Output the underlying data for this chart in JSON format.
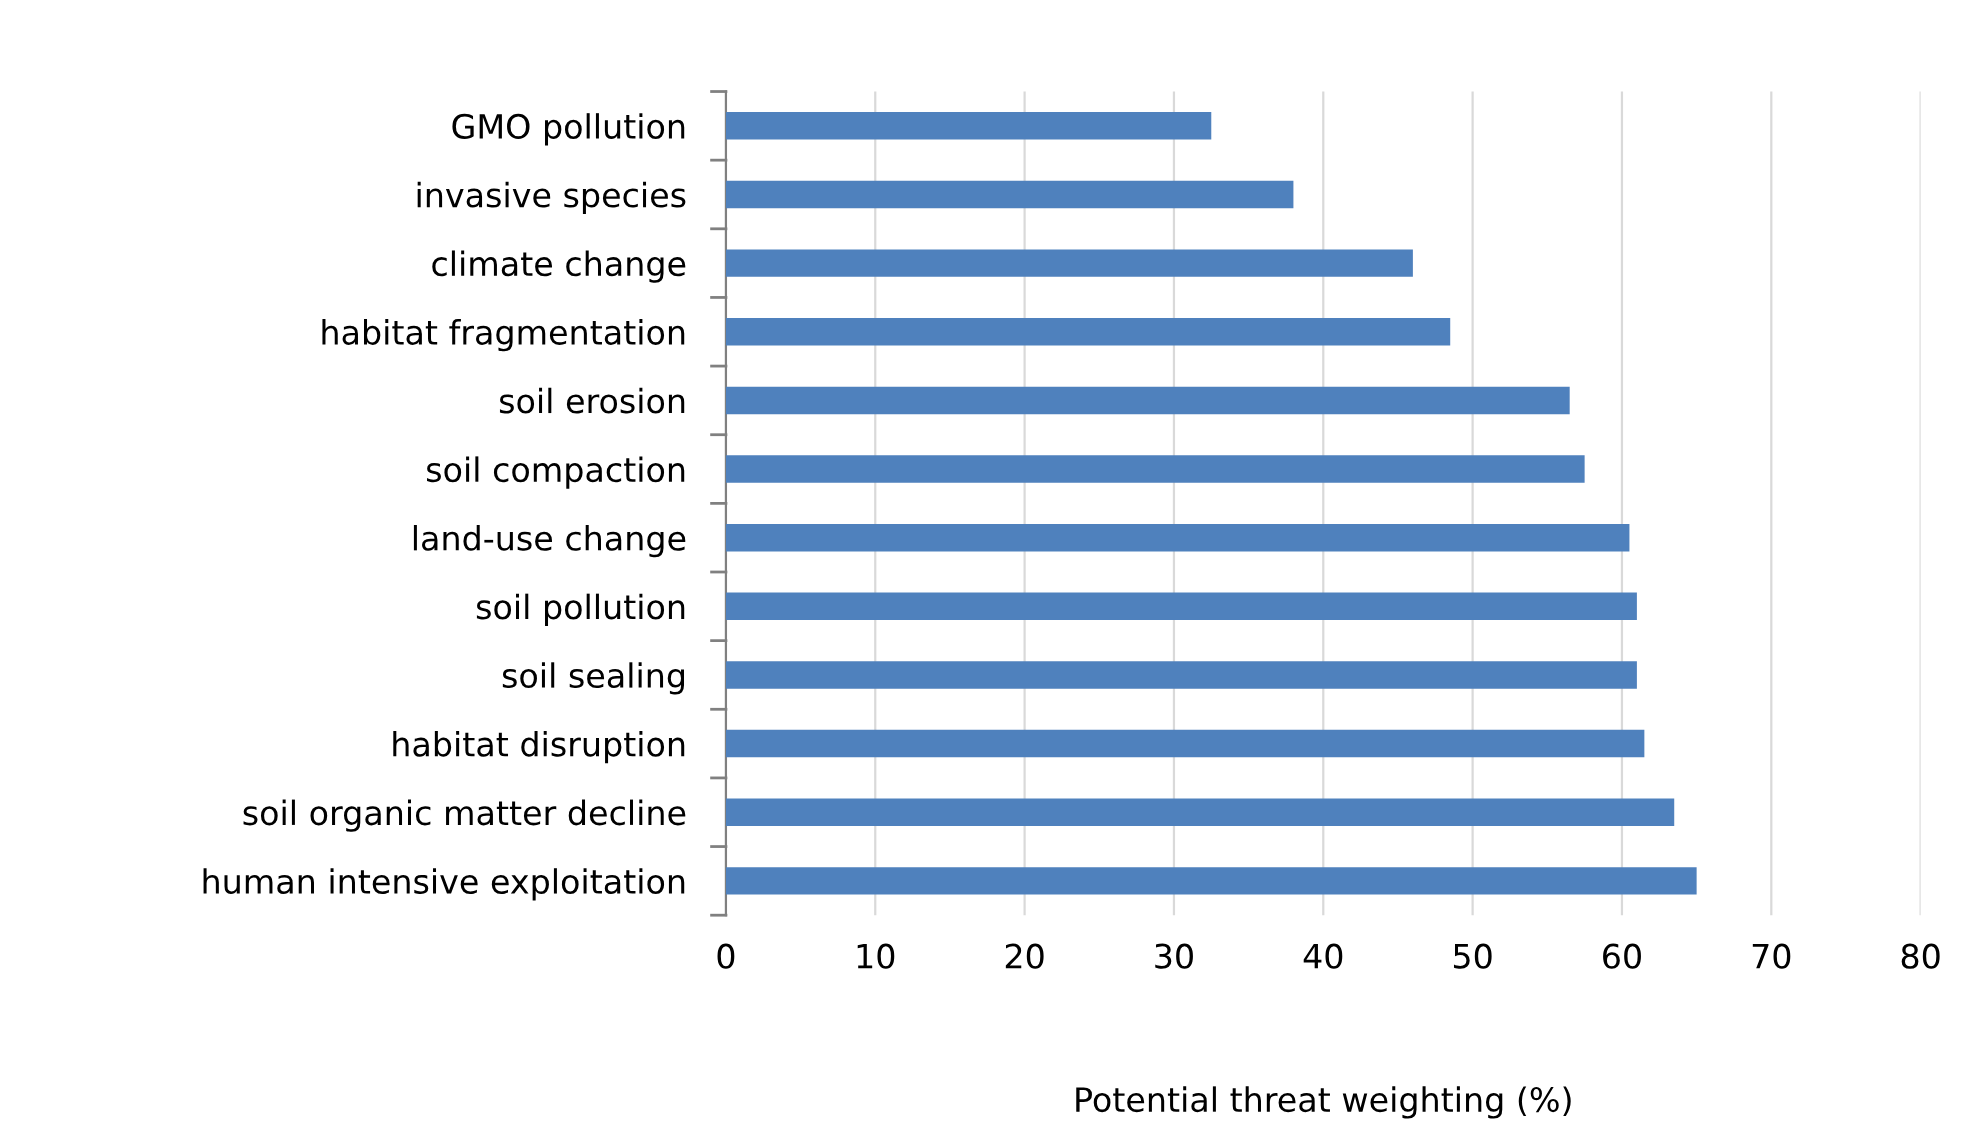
{
  "chart_data": {
    "type": "bar",
    "orientation": "horizontal",
    "xlabel": "Potential threat weighting (%)",
    "categories": [
      "GMO pollution",
      "invasive species",
      "climate change",
      "habitat fragmentation",
      "soil erosion",
      "soil compaction",
      "land-use change",
      "soil pollution",
      "soil sealing",
      "habitat disruption",
      "soil organic matter decline",
      "human intensive exploitation"
    ],
    "values": [
      32.5,
      38,
      46,
      48.5,
      56.5,
      57.5,
      60.5,
      61,
      61,
      61.5,
      63.5,
      65
    ],
    "color": "#4f81bd",
    "xlim": [
      0,
      80
    ],
    "xticks": [
      0,
      10,
      20,
      30,
      40,
      50,
      60,
      70,
      80
    ],
    "grid": "x",
    "legend": false
  }
}
